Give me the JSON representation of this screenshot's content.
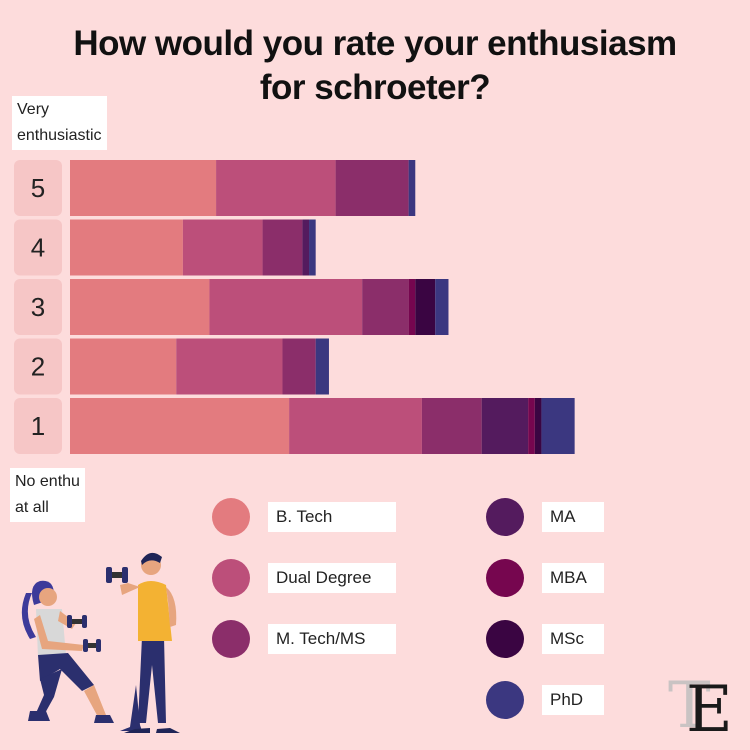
{
  "title_line1": "How would you rate your enthusiasm",
  "title_line2": "for schroeter?",
  "top_note_line1": "Very",
  "top_note_line2": "enthusiastic",
  "bottom_note_line1": "No enthu",
  "bottom_note_line2": "at all",
  "colors": {
    "background": "#fddcdc",
    "label_box": "#f6c6c6"
  },
  "chart_data": {
    "type": "bar",
    "orientation": "horizontal",
    "stacked": true,
    "categories": [
      "5",
      "4",
      "3",
      "2",
      "1"
    ],
    "series": [
      {
        "name": "B. Tech",
        "color": "#e37b7f",
        "values": [
          22,
          17,
          21,
          16,
          33
        ]
      },
      {
        "name": "Dual Degree",
        "color": "#bc4f7a",
        "values": [
          18,
          12,
          23,
          16,
          20
        ]
      },
      {
        "name": "M. Tech/MS",
        "color": "#8b2e6a",
        "values": [
          11,
          6,
          7,
          5,
          9
        ]
      },
      {
        "name": "MA",
        "color": "#541b5e",
        "values": [
          0,
          1,
          0,
          0,
          7
        ]
      },
      {
        "name": "MBA",
        "color": "#76064f",
        "values": [
          0,
          0,
          1,
          0,
          1
        ]
      },
      {
        "name": "MSc",
        "color": "#3a0542",
        "values": [
          0,
          0,
          3,
          0,
          1
        ]
      },
      {
        "name": "PhD",
        "color": "#3b3780",
        "values": [
          1,
          1,
          2,
          2,
          5
        ]
      }
    ],
    "grid": false,
    "legend_position": "bottom"
  },
  "logo_letters": "TE"
}
